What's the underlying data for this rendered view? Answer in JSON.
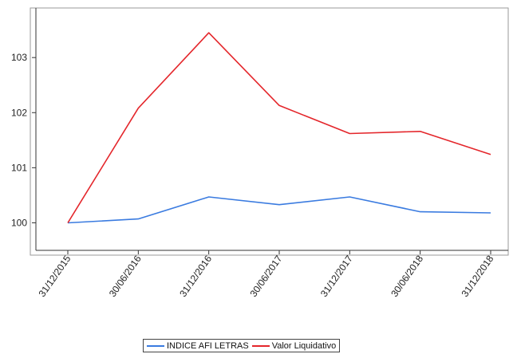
{
  "chart_data": {
    "type": "line",
    "x": [
      "31/12/2015",
      "30/06/2016",
      "31/12/2016",
      "30/06/2017",
      "31/12/2017",
      "30/06/2018",
      "31/12/2018"
    ],
    "ylim": [
      99.5,
      103.9
    ],
    "yticks": [
      100,
      101,
      102,
      103
    ],
    "grid": false,
    "legend_position": "bottom",
    "series": [
      {
        "name": "INDICE AFI LETRAS",
        "color": "#3a7be0",
        "values": [
          100.0,
          100.07,
          100.47,
          100.33,
          100.47,
          100.2,
          100.18
        ]
      },
      {
        "name": "Valor Liquidativo",
        "color": "#e4262b",
        "values": [
          100.0,
          102.08,
          103.45,
          102.13,
          101.62,
          101.66,
          101.24
        ]
      }
    ]
  }
}
